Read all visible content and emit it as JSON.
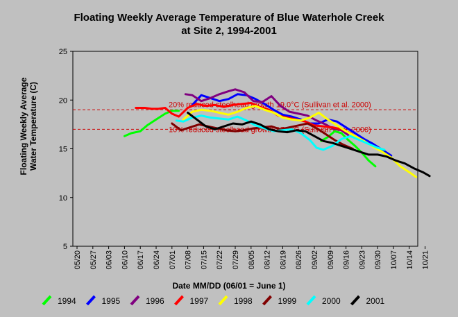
{
  "chart_data": {
    "type": "line",
    "title": [
      "Floating Weekly Average Temperature of Blue Waterhole Creek",
      "at Site 2, 1994-2001"
    ],
    "xlabel": "Date MM/DD (06/01 = June 1)",
    "ylabel": [
      "Floating Weekly Average",
      "Water Temperature (C)"
    ],
    "ylim": [
      5,
      25
    ],
    "yticks": [
      "5",
      "10",
      "15",
      "20",
      "25"
    ],
    "xticks": [
      "05/20",
      "05/27",
      "06/03",
      "06/10",
      "06/17",
      "06/24",
      "07/01",
      "07/08",
      "07/15",
      "07/22",
      "07/29",
      "08/05",
      "08/12",
      "08/19",
      "08/26",
      "09/02",
      "09/09",
      "09/16",
      "09/23",
      "09/30",
      "10/07",
      "10/14",
      "10/21"
    ],
    "grid": false,
    "legend_position": "bottom",
    "reference_lines": [
      {
        "value": 19.0,
        "label": "20% reduced steelhead growth 19.0°C (Sullivan et al. 2000)",
        "color": "#cc0000"
      },
      {
        "value": 17.0,
        "label": "10% reduced steelhead growth 17.0°C (Sullivan et al. 2000)",
        "color": "#cc0000"
      }
    ],
    "series": [
      {
        "name": "1994",
        "color": "#00ff00",
        "x": [
          "06/10",
          "06/13",
          "06/17",
          "06/20",
          "06/24",
          "06/28",
          "07/01",
          "07/04"
        ],
        "values": [
          16.3,
          16.6,
          16.8,
          17.4,
          18.0,
          18.6,
          18.9,
          18.9
        ]
      },
      {
        "name": "1994",
        "color": "#00ff00",
        "x": [
          "09/05",
          "09/08",
          "09/11",
          "09/14",
          "09/17",
          "09/20",
          "09/23",
          "09/26",
          "09/29"
        ],
        "values": [
          15.8,
          16.2,
          16.8,
          16.6,
          15.9,
          15.3,
          14.6,
          13.8,
          13.2
        ]
      },
      {
        "name": "1995",
        "color": "#0000ff",
        "x": [
          "07/10",
          "07/14",
          "07/18",
          "07/22",
          "07/26",
          "07/30",
          "08/03",
          "08/07",
          "08/11",
          "08/15",
          "08/19",
          "08/23",
          "08/27",
          "08/31",
          "09/04",
          "09/08",
          "09/12",
          "09/16",
          "09/20",
          "09/24",
          "09/28",
          "10/02",
          "10/06"
        ],
        "values": [
          19.5,
          20.5,
          20.2,
          19.9,
          20.1,
          20.6,
          20.5,
          20.1,
          19.6,
          19.0,
          18.5,
          18.3,
          18.0,
          17.6,
          17.6,
          18.0,
          17.8,
          17.2,
          16.6,
          16.0,
          15.5,
          14.9,
          14.3
        ]
      },
      {
        "name": "1996",
        "color": "#800080",
        "x": [
          "07/07",
          "07/10",
          "07/14",
          "07/18",
          "07/22",
          "07/26",
          "07/29",
          "08/02",
          "08/06",
          "08/10",
          "08/14",
          "08/18",
          "08/22",
          "08/26",
          "08/30",
          "09/03",
          "09/07",
          "09/10",
          "09/14",
          "09/17"
        ],
        "values": [
          20.6,
          20.5,
          19.9,
          20.2,
          20.6,
          20.9,
          21.1,
          20.8,
          19.9,
          19.8,
          20.4,
          19.4,
          18.8,
          18.6,
          18.4,
          17.9,
          17.5,
          17.1,
          16.9,
          16.4
        ]
      },
      {
        "name": "1997",
        "color": "#ff0000",
        "x": [
          "06/15",
          "06/19",
          "06/22",
          "06/25",
          "06/28",
          "07/01",
          "07/04",
          "07/08",
          "07/12",
          "07/16",
          "07/20",
          "07/24",
          "07/28",
          "08/01",
          "08/05",
          "08/09",
          "08/13",
          "08/17",
          "08/21",
          "08/25",
          "08/29",
          "09/02",
          "09/06",
          "09/10",
          "09/14",
          "09/18",
          "09/22"
        ],
        "values": [
          19.2,
          19.2,
          19.1,
          19.1,
          19.2,
          18.6,
          18.3,
          19.2,
          19.6,
          19.4,
          19.5,
          19.3,
          19.5,
          19.6,
          19.7,
          19.3,
          19.0,
          18.4,
          18.2,
          18.0,
          17.8,
          17.4,
          17.3,
          17.2,
          17.0,
          16.6,
          16.0
        ]
      },
      {
        "name": "1998",
        "color": "#ffff00",
        "x": [
          "07/06",
          "07/10",
          "07/14",
          "07/18",
          "07/22",
          "07/26",
          "07/30",
          "08/03",
          "08/07",
          "08/11",
          "08/15",
          "08/19",
          "08/23",
          "08/27",
          "08/31",
          "09/04",
          "09/08",
          "09/12",
          "09/16",
          "09/20",
          "09/24",
          "09/28",
          "10/02",
          "10/06",
          "10/10",
          "10/14",
          "10/17"
        ],
        "values": [
          18.0,
          18.8,
          19.0,
          18.9,
          18.7,
          18.5,
          18.8,
          19.2,
          19.4,
          19.0,
          18.7,
          18.2,
          18.0,
          17.9,
          18.2,
          18.7,
          18.0,
          17.4,
          16.8,
          16.3,
          15.8,
          15.2,
          14.7,
          14.1,
          13.2,
          12.6,
          12.1
        ]
      },
      {
        "name": "1999",
        "color": "#800000",
        "x": [
          "07/01",
          "07/05",
          "07/09",
          "07/13",
          "07/17",
          "07/21",
          "07/25",
          "07/29",
          "08/02",
          "08/06",
          "08/10",
          "08/14",
          "08/18",
          "08/22",
          "08/26",
          "08/30",
          "09/03",
          "09/07",
          "09/11",
          "09/15",
          "09/19"
        ],
        "values": [
          17.6,
          16.9,
          17.2,
          17.5,
          17.3,
          17.1,
          16.9,
          16.8,
          16.9,
          17.1,
          17.2,
          17.3,
          17.0,
          17.2,
          17.4,
          17.6,
          17.1,
          16.5,
          15.9,
          15.4,
          15.0
        ]
      },
      {
        "name": "2000",
        "color": "#00ffff",
        "x": [
          "07/03",
          "07/06",
          "07/10",
          "07/14",
          "07/18",
          "07/22",
          "07/26",
          "07/30",
          "08/03",
          "08/07",
          "08/11",
          "08/15",
          "08/19",
          "08/23",
          "08/27",
          "08/31",
          "09/03",
          "09/06",
          "09/10",
          "09/14",
          "09/18",
          "09/22",
          "09/26",
          "09/30",
          "10/03"
        ],
        "values": [
          17.9,
          17.8,
          18.2,
          18.4,
          18.2,
          18.1,
          18.0,
          18.3,
          17.9,
          17.4,
          17.1,
          16.8,
          16.9,
          17.0,
          16.6,
          15.9,
          15.1,
          14.9,
          15.3,
          16.0,
          16.3,
          15.9,
          15.5,
          15.1,
          14.9
        ]
      },
      {
        "name": "2001",
        "color": "#000000",
        "x": [
          "07/08",
          "07/12",
          "07/16",
          "07/20",
          "07/24",
          "07/28",
          "08/01",
          "08/05",
          "08/09",
          "08/13",
          "08/17",
          "08/21",
          "08/25",
          "08/29",
          "09/02",
          "09/06",
          "09/10",
          "09/14",
          "09/18",
          "09/22",
          "09/26",
          "09/30",
          "10/04",
          "10/08",
          "10/12",
          "10/16",
          "10/20",
          "10/23"
        ],
        "values": [
          18.7,
          18.0,
          17.3,
          17.0,
          17.3,
          17.6,
          17.5,
          17.8,
          17.5,
          17.0,
          16.8,
          16.7,
          16.9,
          16.8,
          16.3,
          15.8,
          15.6,
          15.3,
          15.0,
          14.7,
          14.4,
          14.4,
          14.2,
          13.8,
          13.5,
          13.0,
          12.6,
          12.2
        ]
      }
    ]
  }
}
